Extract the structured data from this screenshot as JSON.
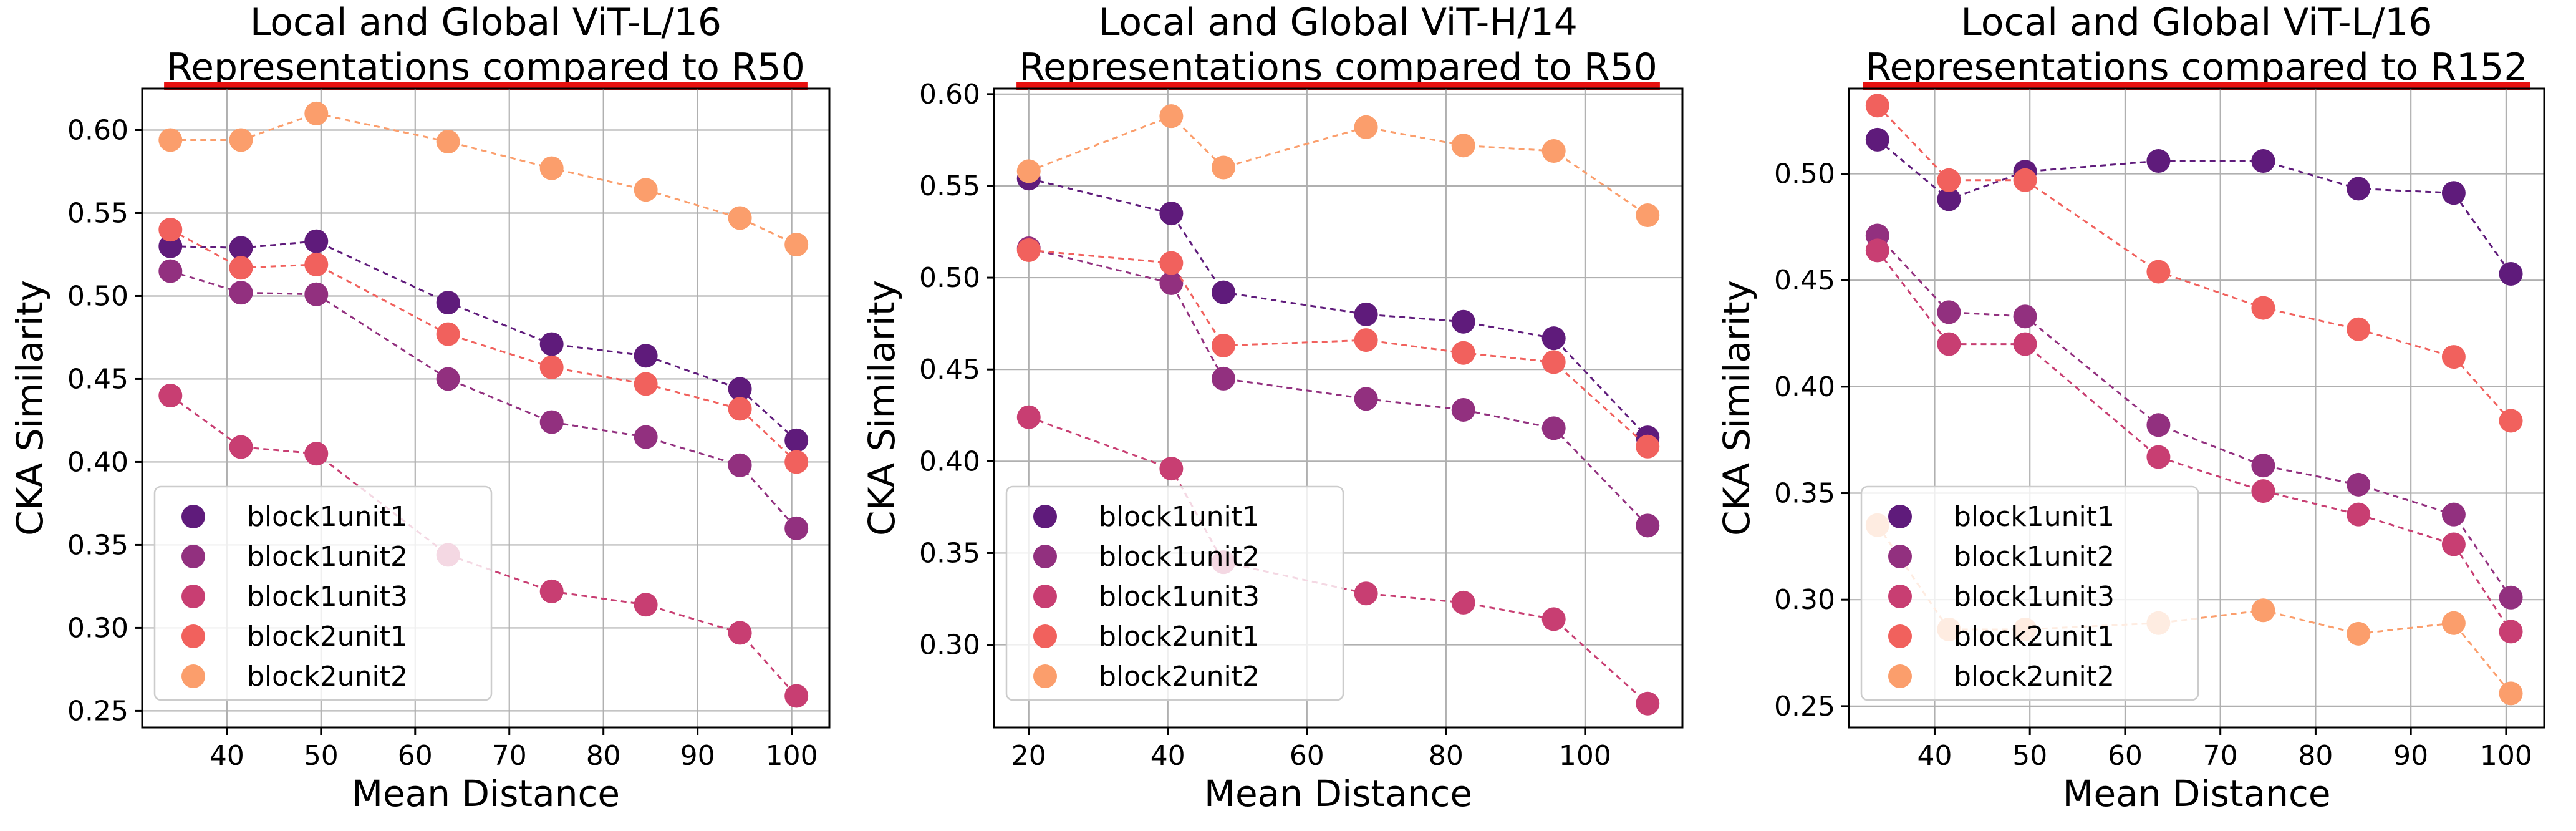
{
  "colors": {
    "block1unit1": "#5f1b7b",
    "block1unit2": "#92307f",
    "block1unit3": "#c83e72",
    "block2unit1": "#f1615d",
    "block2unit2": "#fb9e6c",
    "highlight": "#e8100f"
  },
  "chart_data": [
    {
      "type": "scatter",
      "title": [
        "Local and Global ViT-L/16",
        "Representations compared to R50"
      ],
      "xlabel": "Mean Distance",
      "ylabel": "CKA Similarity",
      "xlim": [
        31,
        104
      ],
      "ylim": [
        0.24,
        0.625
      ],
      "xticks": [
        40,
        50,
        60,
        70,
        80,
        90,
        100
      ],
      "yticks": [
        0.25,
        0.3,
        0.35,
        0.4,
        0.45,
        0.5,
        0.55,
        0.6
      ],
      "ytick_labels": [
        "0.25",
        "0.30",
        "0.35",
        "0.40",
        "0.45",
        "0.50",
        "0.55",
        "0.60"
      ],
      "grid": true,
      "legend_position": "lower-left",
      "x": [
        34,
        41.5,
        49.5,
        63.5,
        74.5,
        84.5,
        94.5,
        100.5
      ],
      "series": [
        {
          "name": "block1unit1",
          "values": [
            0.53,
            0.529,
            0.533,
            0.496,
            0.471,
            0.464,
            0.444,
            0.413
          ]
        },
        {
          "name": "block1unit2",
          "values": [
            0.515,
            0.502,
            0.501,
            0.45,
            0.424,
            0.415,
            0.398,
            0.36
          ]
        },
        {
          "name": "block1unit3",
          "values": [
            0.44,
            0.409,
            0.405,
            0.344,
            0.322,
            0.314,
            0.297,
            0.259
          ]
        },
        {
          "name": "block2unit1",
          "values": [
            0.54,
            0.517,
            0.519,
            0.477,
            0.457,
            0.447,
            0.432,
            0.4
          ]
        },
        {
          "name": "block2unit2",
          "values": [
            0.594,
            0.594,
            0.61,
            0.593,
            0.577,
            0.564,
            0.547,
            0.531
          ]
        }
      ]
    },
    {
      "type": "scatter",
      "title": [
        "Local and Global ViT-H/14",
        "Representations compared to R50"
      ],
      "xlabel": "Mean Distance",
      "ylabel": "CKA Similarity",
      "xlim": [
        15,
        114
      ],
      "ylim": [
        0.255,
        0.603
      ],
      "xticks": [
        20,
        40,
        60,
        80,
        100
      ],
      "yticks": [
        0.3,
        0.35,
        0.4,
        0.45,
        0.5,
        0.55,
        0.6
      ],
      "ytick_labels": [
        "0.30",
        "0.35",
        "0.40",
        "0.45",
        "0.50",
        "0.55",
        "0.60"
      ],
      "grid": true,
      "legend_position": "lower-left",
      "x": [
        20,
        40.5,
        48,
        68.5,
        82.5,
        95.5,
        109
      ],
      "series": [
        {
          "name": "block1unit1",
          "values": [
            0.554,
            0.535,
            0.492,
            0.48,
            0.476,
            0.467,
            0.413
          ]
        },
        {
          "name": "block1unit2",
          "values": [
            0.516,
            0.497,
            0.445,
            0.434,
            0.428,
            0.418,
            0.365
          ]
        },
        {
          "name": "block1unit3",
          "values": [
            0.424,
            0.396,
            0.345,
            0.328,
            0.323,
            0.314,
            0.268
          ]
        },
        {
          "name": "block2unit1",
          "values": [
            0.515,
            0.508,
            0.463,
            0.466,
            0.459,
            0.454,
            0.408
          ]
        },
        {
          "name": "block2unit2",
          "values": [
            0.558,
            0.588,
            0.56,
            0.582,
            0.572,
            0.569,
            0.534
          ]
        }
      ]
    },
    {
      "type": "scatter",
      "title": [
        "Local and Global ViT-L/16",
        "Representations compared to R152"
      ],
      "xlabel": "Mean Distance",
      "ylabel": "CKA Similarity",
      "xlim": [
        31,
        104
      ],
      "ylim": [
        0.24,
        0.54
      ],
      "xticks": [
        40,
        50,
        60,
        70,
        80,
        90,
        100
      ],
      "yticks": [
        0.25,
        0.3,
        0.35,
        0.4,
        0.45,
        0.5
      ],
      "ytick_labels": [
        "0.25",
        "0.30",
        "0.35",
        "0.40",
        "0.45",
        "0.50"
      ],
      "grid": true,
      "legend_position": "lower-left",
      "x": [
        34,
        41.5,
        49.5,
        63.5,
        74.5,
        84.5,
        94.5,
        100.5
      ],
      "series": [
        {
          "name": "block1unit1",
          "values": [
            0.516,
            0.488,
            0.501,
            0.506,
            0.506,
            0.493,
            0.491,
            0.453
          ]
        },
        {
          "name": "block1unit2",
          "values": [
            0.471,
            0.435,
            0.433,
            0.382,
            0.363,
            0.354,
            0.34,
            0.301
          ]
        },
        {
          "name": "block1unit3",
          "values": [
            0.464,
            0.42,
            0.42,
            0.367,
            0.351,
            0.34,
            0.326,
            0.285
          ]
        },
        {
          "name": "block2unit1",
          "values": [
            0.532,
            0.497,
            0.497,
            0.454,
            0.437,
            0.427,
            0.414,
            0.384
          ]
        },
        {
          "name": "block2unit2",
          "values": [
            0.335,
            0.286,
            0.286,
            0.289,
            0.295,
            0.284,
            0.289,
            0.256
          ]
        }
      ]
    }
  ]
}
